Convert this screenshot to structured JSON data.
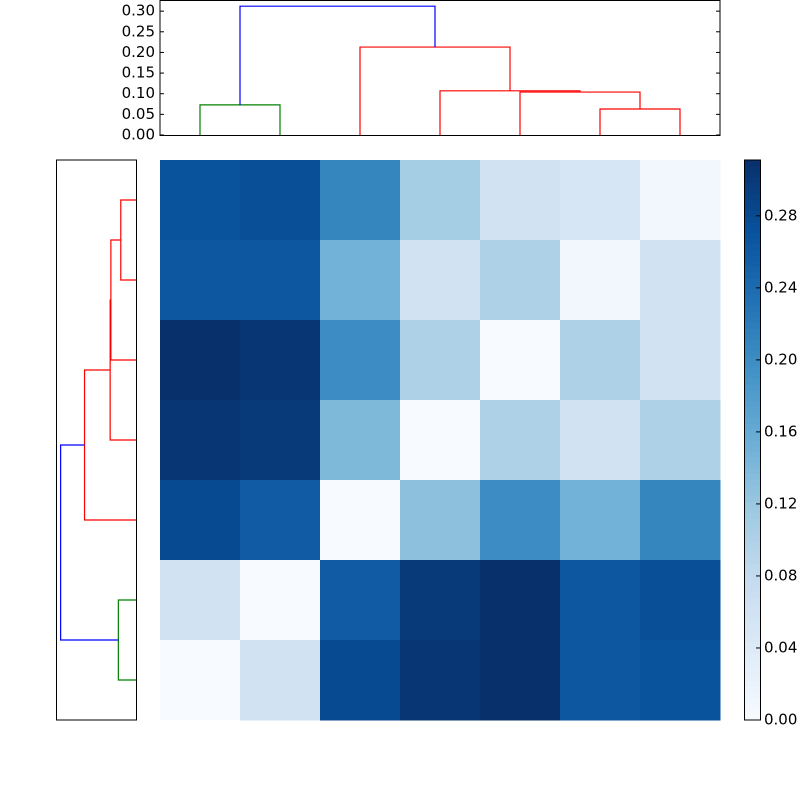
{
  "chart_data": [
    {
      "type": "heatmap",
      "colormap": "Blues",
      "matrix": [
        [
          0.27,
          0.275,
          0.21,
          0.11,
          0.06,
          0.05,
          0.01
        ],
        [
          0.265,
          0.265,
          0.15,
          0.06,
          0.1,
          0.01,
          0.06
        ],
        [
          0.31,
          0.305,
          0.2,
          0.1,
          0.0,
          0.1,
          0.06
        ],
        [
          0.305,
          0.3,
          0.14,
          0.0,
          0.1,
          0.06,
          0.1
        ],
        [
          0.28,
          0.26,
          0.0,
          0.13,
          0.2,
          0.15,
          0.21
        ],
        [
          0.06,
          0.0,
          0.26,
          0.3,
          0.31,
          0.265,
          0.275
        ],
        [
          0.0,
          0.06,
          0.28,
          0.305,
          0.31,
          0.265,
          0.27
        ]
      ],
      "clim": [
        0,
        0.311
      ],
      "cticks": [
        {
          "value": 0,
          "label": "0.00"
        },
        {
          "value": 0.04,
          "label": "0.04"
        },
        {
          "value": 0.08,
          "label": "0.08"
        },
        {
          "value": 0.12,
          "label": "0.12"
        },
        {
          "value": 0.16,
          "label": "0.16"
        },
        {
          "value": 0.2,
          "label": "0.20"
        },
        {
          "value": 0.24,
          "label": "0.24"
        },
        {
          "value": 0.28,
          "label": "0.28"
        }
      ]
    },
    {
      "type": "dendrogram",
      "xlim": [
        0,
        70
      ],
      "ylim": [
        0,
        0.327
      ],
      "yticks": [
        {
          "value": 0,
          "label": "0.00"
        },
        {
          "value": 0.05,
          "label": "0.05"
        },
        {
          "value": 0.1,
          "label": "0.10"
        },
        {
          "value": 0.15,
          "label": "0.15"
        },
        {
          "value": 0.2,
          "label": "0.20"
        },
        {
          "value": 0.25,
          "label": "0.25"
        },
        {
          "value": 0.3,
          "label": "0.30"
        }
      ],
      "links": [
        {
          "color": "#008000",
          "x": [
            5,
            5,
            15,
            15
          ],
          "y": [
            0,
            0.073,
            0.073,
            0
          ]
        },
        {
          "color": "#ff0000",
          "x": [
            55,
            55,
            65,
            65
          ],
          "y": [
            0,
            0.063,
            0.063,
            0
          ]
        },
        {
          "color": "#ff0000",
          "x": [
            45,
            45,
            60,
            60
          ],
          "y": [
            0,
            0.104,
            0.104,
            0.063
          ]
        },
        {
          "color": "#ff0000",
          "x": [
            35,
            35,
            52.5,
            52.5
          ],
          "y": [
            0,
            0.107,
            0.107,
            0.104
          ]
        },
        {
          "color": "#ff0000",
          "x": [
            25,
            25,
            43.75,
            43.75
          ],
          "y": [
            0,
            0.213,
            0.213,
            0.107
          ]
        },
        {
          "color": "#0000ff",
          "x": [
            10,
            10,
            34.375,
            34.375
          ],
          "y": [
            0.073,
            0.312,
            0.312,
            0.213
          ]
        }
      ]
    }
  ]
}
